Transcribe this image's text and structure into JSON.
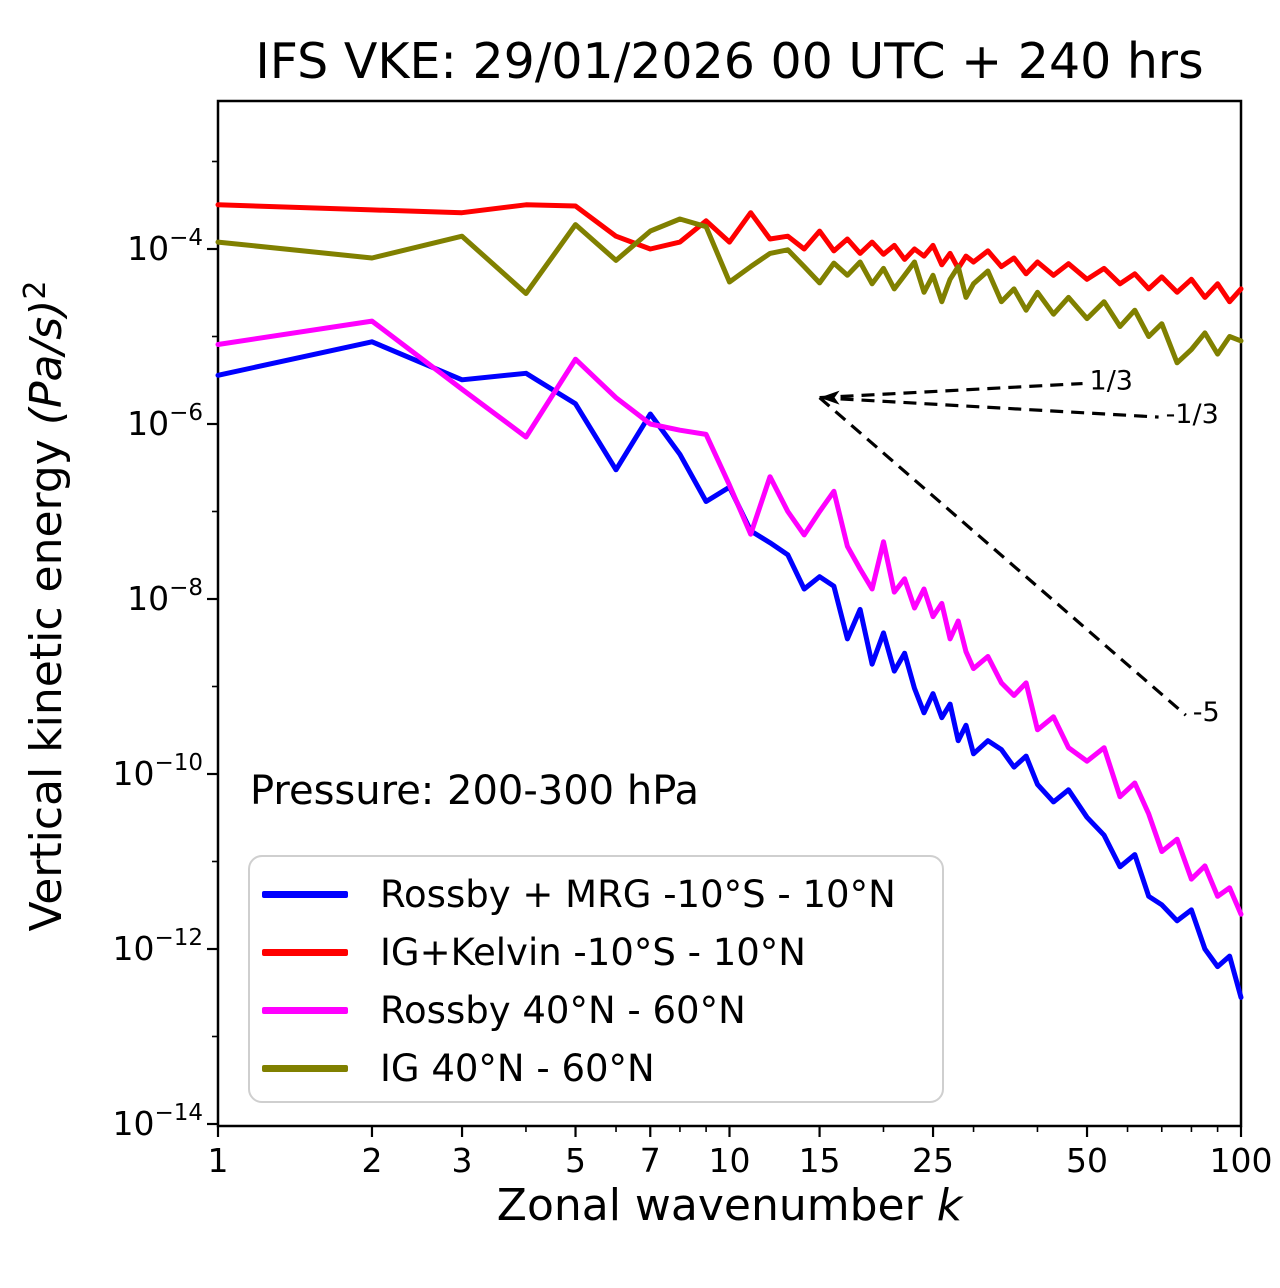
{
  "title": "IFS VKE: 29/01/2026 00 UTC + 240 hrs",
  "axes": {
    "x": {
      "label_text": "Zonal wavenumber",
      "label_var": "k",
      "major_ticks": [
        {
          "k": 1,
          "label": "1"
        },
        {
          "k": 2,
          "label": "2"
        },
        {
          "k": 3,
          "label": "3"
        },
        {
          "k": 5,
          "label": "5"
        },
        {
          "k": 7,
          "label": "7"
        },
        {
          "k": 10,
          "label": "10"
        },
        {
          "k": 15,
          "label": "15"
        },
        {
          "k": 25,
          "label": "25"
        },
        {
          "k": 50,
          "label": "50"
        },
        {
          "k": 100,
          "label": "100"
        }
      ],
      "minor_ticks": [
        4,
        6,
        8,
        9,
        20,
        30,
        40,
        60,
        70,
        80,
        90
      ]
    },
    "y": {
      "label_prefix": "Vertical kinetic energy ",
      "label_math": "(Pa/s)",
      "label_exponent": "2",
      "major_ticks": [
        {
          "exp": -4,
          "sup": "−4"
        },
        {
          "exp": -6,
          "sup": "−6"
        },
        {
          "exp": -8,
          "sup": "−8"
        },
        {
          "exp": -10,
          "sup": "−10"
        },
        {
          "exp": -12,
          "sup": "−12"
        },
        {
          "exp": -14,
          "sup": "−14"
        }
      ],
      "minor_exps": [
        -3,
        -5,
        -7,
        -9,
        -11,
        -13
      ]
    }
  },
  "annotations": {
    "pressure_text": "Pressure: 200-300 hPa",
    "slope_guides": [
      {
        "label": "1/3",
        "k_from": 15,
        "v_from": 2e-06,
        "k_to": 49,
        "v_to": 2.9e-06
      },
      {
        "label": "-1/3",
        "k_from": 15,
        "v_from": 2e-06,
        "k_to": 69,
        "v_to": 1.2e-06
      },
      {
        "label": "-5",
        "k_from": 15,
        "v_from": 2e-06,
        "k_to": 78,
        "v_to": 4.7e-10
      }
    ]
  },
  "legend": {
    "items": [
      {
        "label": "Rossby + MRG -10°S - 10°N",
        "color": "#0000ff"
      },
      {
        "label": "IG+Kelvin -10°S - 10°N",
        "color": "#ff0000"
      },
      {
        "label": "Rossby 40°N - 60°N",
        "color": "#ff00ff"
      },
      {
        "label": "IG 40°N - 60°N",
        "color": "#808000"
      }
    ]
  },
  "chart_data": {
    "type": "line",
    "title": "IFS VKE: 29/01/2026 00 UTC + 240 hrs",
    "xlabel": "Zonal wavenumber k",
    "ylabel": "Vertical kinetic energy (Pa/s)^2",
    "x_scale": "log",
    "y_scale": "log",
    "xlim": [
      1,
      100
    ],
    "ylim": [
      1e-14,
      0.005
    ],
    "grid": false,
    "legend_position": "lower left",
    "k": [
      1,
      2,
      3,
      4,
      5,
      6,
      7,
      8,
      9,
      10,
      11,
      12,
      13,
      14,
      15,
      16,
      17,
      18,
      19,
      20,
      21,
      22,
      23,
      24,
      25,
      26,
      27,
      28,
      29,
      30,
      32,
      34,
      36,
      38,
      40,
      43,
      46,
      50,
      54,
      58,
      62,
      66,
      70,
      75,
      80,
      85,
      90,
      95,
      100
    ],
    "series": [
      {
        "id": "rossby-mrg-tropics",
        "name": "Rossby + MRG -10°S - 10°N",
        "color": "#0000ff",
        "values": [
          3.6e-06,
          8.7e-06,
          3.2e-06,
          3.8e-06,
          1.7e-06,
          3e-07,
          1.3e-06,
          4.5e-07,
          1.3e-07,
          1.9e-07,
          6e-08,
          4.4e-08,
          3.2e-08,
          1.3e-08,
          1.8e-08,
          1.4e-08,
          3.5e-09,
          7.6e-09,
          1.8e-09,
          4.1e-09,
          1.5e-09,
          2.4e-09,
          9.5e-10,
          5e-10,
          8.3e-10,
          4.4e-10,
          6.3e-10,
          2.4e-10,
          3.6e-10,
          1.7e-10,
          2.4e-10,
          1.9e-10,
          1.2e-10,
          1.6e-10,
          7.6e-11,
          4.8e-11,
          6.6e-11,
          3.2e-11,
          2e-11,
          8.7e-12,
          1.2e-11,
          4e-12,
          3.2e-12,
          2.1e-12,
          2.8e-12,
          1e-12,
          6.3e-13,
          8.3e-13,
          2.8e-13
        ]
      },
      {
        "id": "ig-kelvin-tropics",
        "name": "IG+Kelvin -10°S - 10°N",
        "color": "#ff0000",
        "values": [
          0.00032,
          0.00028,
          0.00026,
          0.00032,
          0.00031,
          0.00014,
          0.0001,
          0.00012,
          0.00021,
          0.00012,
          0.00026,
          0.00013,
          0.00014,
          0.0001,
          0.00016,
          9.5e-05,
          0.00013,
          8.9e-05,
          0.00012,
          8.7e-05,
          0.00011,
          7.6e-05,
          0.0001,
          8.3e-05,
          0.00011,
          6.6e-05,
          8.9e-05,
          6e-05,
          8.3e-05,
          7.1e-05,
          9.5e-05,
          6.3e-05,
          7.9e-05,
          5.2e-05,
          7.1e-05,
          5e-05,
          6.8e-05,
          4.5e-05,
          6e-05,
          4e-05,
          5.2e-05,
          3.5e-05,
          4.8e-05,
          3.2e-05,
          4.5e-05,
          2.8e-05,
          4e-05,
          2.5e-05,
          3.5e-05
        ]
      },
      {
        "id": "rossby-midlat",
        "name": "Rossby 40°N - 60°N",
        "color": "#ff00ff",
        "values": [
          8.1e-06,
          1.5e-05,
          2.5e-06,
          7.1e-07,
          5.5e-06,
          2e-06,
          1e-06,
          8.5e-07,
          7.6e-07,
          2e-07,
          5.5e-08,
          2.5e-07,
          1e-07,
          5.4e-08,
          1e-07,
          1.7e-07,
          4e-08,
          2.2e-08,
          1.3e-08,
          4.5e-08,
          1.2e-08,
          1.7e-08,
          7.9e-09,
          1.3e-08,
          6.3e-09,
          8.9e-09,
          3.5e-09,
          5.6e-09,
          2.5e-09,
          1.6e-09,
          2.2e-09,
          1.1e-09,
          7.9e-10,
          1.1e-09,
          3.2e-10,
          4.5e-10,
          2e-10,
          1.4e-10,
          2e-10,
          5.5e-11,
          7.9e-11,
          3.5e-11,
          1.3e-11,
          1.8e-11,
          6.3e-12,
          8.9e-12,
          4e-12,
          5e-12,
          2.5e-12
        ]
      },
      {
        "id": "ig-midlat",
        "name": "IG 40°N - 60°N",
        "color": "#808000",
        "values": [
          0.00012,
          7.9e-05,
          0.00014,
          3.1e-05,
          0.00019,
          7.4e-05,
          0.00016,
          0.00022,
          0.00018,
          4.2e-05,
          6.3e-05,
          8.9e-05,
          9.8e-05,
          6.3e-05,
          4.1e-05,
          6.9e-05,
          5e-05,
          7.1e-05,
          4e-05,
          6e-05,
          3.5e-05,
          5e-05,
          7.1e-05,
          3.2e-05,
          5e-05,
          2.5e-05,
          4.5e-05,
          6.3e-05,
          2.8e-05,
          4e-05,
          5.6e-05,
          2.5e-05,
          3.5e-05,
          2e-05,
          3.2e-05,
          1.8e-05,
          2.8e-05,
          1.6e-05,
          2.5e-05,
          1.3e-05,
          2e-05,
          1e-05,
          1.4e-05,
          5e-06,
          7.1e-06,
          1.1e-05,
          6.3e-06,
          1e-05,
          8.9e-06
        ]
      }
    ]
  }
}
